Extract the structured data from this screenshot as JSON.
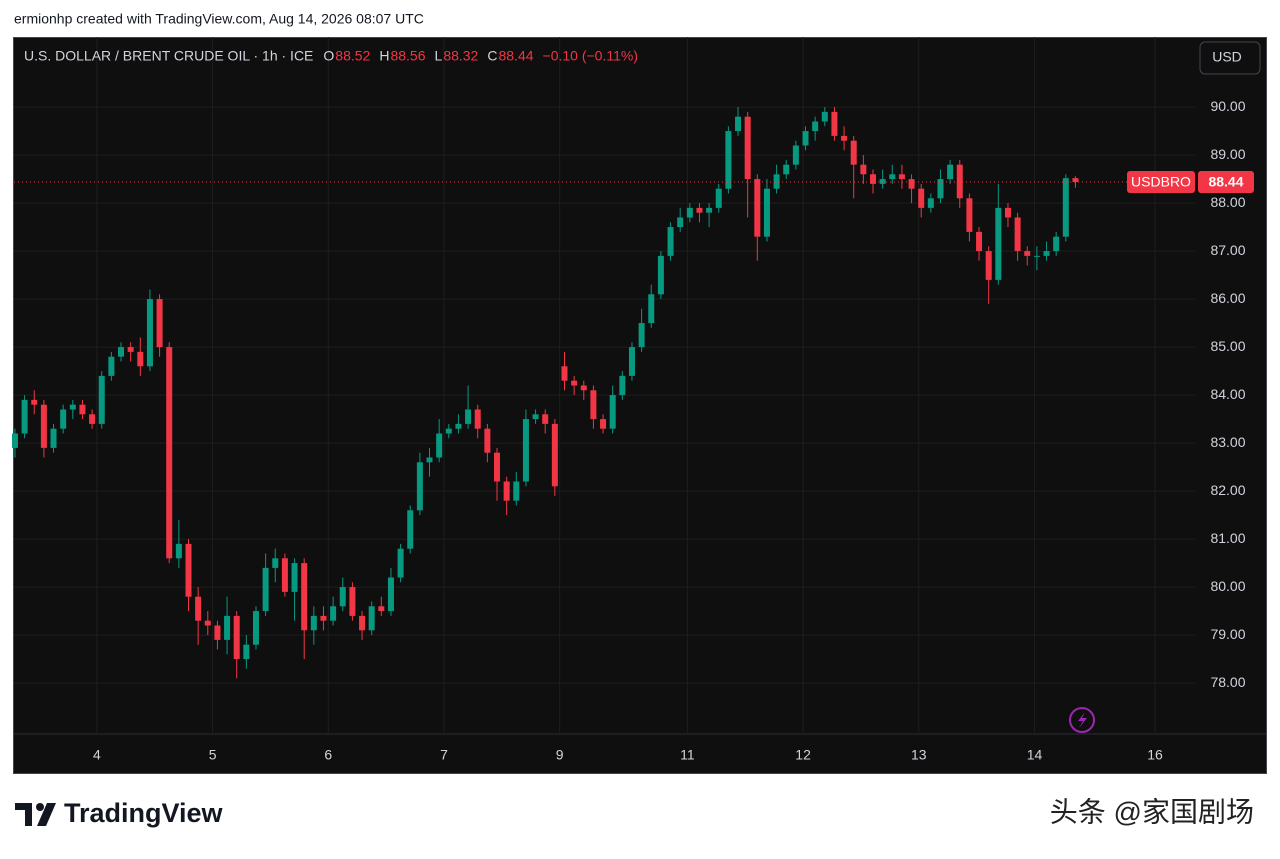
{
  "header": {
    "credit": "ermionhp created with TradingView.com, Aug 14, 2026 08:07 UTC"
  },
  "legend": {
    "symbol": "U.S. DOLLAR / BRENT CRUDE OIL · 1h · ICE",
    "items": [
      {
        "key": "O",
        "value": "88.52"
      },
      {
        "key": "H",
        "value": "88.56"
      },
      {
        "key": "L",
        "value": "88.32"
      },
      {
        "key": "C",
        "value": "88.44"
      }
    ],
    "change": "−0.10 (−0.11%)"
  },
  "currency": "USD",
  "brand": "TradingView",
  "watermark": "头条 @家国剧场",
  "chart_data": {
    "type": "candlestick",
    "up_color": "#089981",
    "down_color": "#f23645",
    "grid": true,
    "last_price": {
      "name": "USDBRO",
      "value": 88.44,
      "label": "88.44",
      "color": "#f23645"
    },
    "xlim": [
      -17.2,
      227.8
    ],
    "xticks": [
      {
        "value": 0,
        "label": "4"
      },
      {
        "value": 24,
        "label": "5"
      },
      {
        "value": 48,
        "label": "6"
      },
      {
        "value": 72,
        "label": "7"
      },
      {
        "value": 96,
        "label": "9"
      },
      {
        "value": 122.5,
        "label": "11"
      },
      {
        "value": 146.5,
        "label": "12"
      },
      {
        "value": 170.5,
        "label": "13"
      },
      {
        "value": 194.5,
        "label": "14"
      },
      {
        "value": 219.5,
        "label": "16"
      }
    ],
    "ylim": [
      76.96,
      91.46
    ],
    "yticks": [
      {
        "value": 78,
        "label": "78.00"
      },
      {
        "value": 79,
        "label": "79.00"
      },
      {
        "value": 80,
        "label": "80.00"
      },
      {
        "value": 81,
        "label": "81.00"
      },
      {
        "value": 82,
        "label": "82.00"
      },
      {
        "value": 83,
        "label": "83.00"
      },
      {
        "value": 84,
        "label": "84.00"
      },
      {
        "value": 85,
        "label": "85.00"
      },
      {
        "value": 86,
        "label": "86.00"
      },
      {
        "value": 87,
        "label": "87.00"
      },
      {
        "value": 88,
        "label": "88.00"
      },
      {
        "value": 89,
        "label": "89.00"
      },
      {
        "value": 90,
        "label": "90.00"
      }
    ],
    "x": [
      -17,
      -15,
      -13,
      -11,
      -9,
      -7,
      -5,
      -3,
      -1,
      1,
      3,
      5,
      7,
      9,
      11,
      13,
      15,
      17,
      19,
      21,
      23,
      25,
      27,
      29,
      31,
      33,
      35,
      37,
      39,
      41,
      43,
      45,
      47,
      49,
      51,
      53,
      55,
      57,
      59,
      61,
      63,
      65,
      67,
      69,
      71,
      73,
      75,
      77,
      79,
      81,
      83,
      85,
      87,
      89,
      91,
      93,
      95,
      97,
      99,
      101,
      103,
      105,
      107,
      109,
      111,
      113,
      115,
      117,
      119,
      121,
      123,
      125,
      127,
      129,
      131,
      133,
      135,
      137,
      139,
      141,
      143,
      145,
      147,
      149,
      151,
      153,
      155,
      157,
      159,
      161,
      163,
      165,
      167,
      169,
      171,
      173,
      175,
      177,
      179,
      181,
      183,
      185,
      187,
      189,
      191,
      193,
      195,
      197,
      199,
      201,
      203
    ],
    "open": [
      82.9,
      83.2,
      83.9,
      83.8,
      82.9,
      83.3,
      83.7,
      83.8,
      83.6,
      83.4,
      84.4,
      84.8,
      85.0,
      84.9,
      84.6,
      86.0,
      85.0,
      80.6,
      80.9,
      79.8,
      79.3,
      79.2,
      78.9,
      79.4,
      78.5,
      78.8,
      79.5,
      80.4,
      80.6,
      79.9,
      80.5,
      79.1,
      79.4,
      79.3,
      79.6,
      80.0,
      79.4,
      79.1,
      79.6,
      79.5,
      80.2,
      80.8,
      81.6,
      82.6,
      82.7,
      83.2,
      83.3,
      83.4,
      83.7,
      83.3,
      82.8,
      82.2,
      81.8,
      82.2,
      83.5,
      83.6,
      83.4,
      84.6,
      84.3,
      84.2,
      84.1,
      83.5,
      83.3,
      84.0,
      84.4,
      85.0,
      85.5,
      86.1,
      86.9,
      87.5,
      87.7,
      87.9,
      87.8,
      87.9,
      88.3,
      89.5,
      89.8,
      88.5,
      87.3,
      88.3,
      88.6,
      88.8,
      89.2,
      89.5,
      89.7,
      89.9,
      89.4,
      89.3,
      88.8,
      88.6,
      88.4,
      88.5,
      88.6,
      88.5,
      88.3,
      87.9,
      88.1,
      88.5,
      88.8,
      88.1,
      87.4,
      87.0,
      86.4,
      87.9,
      87.7,
      87.0,
      86.9,
      86.9,
      87.0,
      87.3,
      88.52
    ],
    "high": [
      83.3,
      84.0,
      84.1,
      83.9,
      83.4,
      83.8,
      83.9,
      83.9,
      83.7,
      84.5,
      84.9,
      85.1,
      85.1,
      85.2,
      86.2,
      86.1,
      85.1,
      81.4,
      81.0,
      80.0,
      79.5,
      79.3,
      79.8,
      79.5,
      79.0,
      79.6,
      80.7,
      80.8,
      80.7,
      80.6,
      80.6,
      79.6,
      79.6,
      79.8,
      80.2,
      80.1,
      79.5,
      79.7,
      79.8,
      80.4,
      80.9,
      81.7,
      82.8,
      82.9,
      83.5,
      83.4,
      83.6,
      84.2,
      83.8,
      83.4,
      82.9,
      82.3,
      82.4,
      83.7,
      83.7,
      83.7,
      83.5,
      84.9,
      84.4,
      84.3,
      84.2,
      83.6,
      84.2,
      84.5,
      85.1,
      85.8,
      86.3,
      87.0,
      87.6,
      87.9,
      88.0,
      88.0,
      88.0,
      88.4,
      89.6,
      90.0,
      89.9,
      88.6,
      88.5,
      88.8,
      88.9,
      89.3,
      89.6,
      89.8,
      90.0,
      90.0,
      89.6,
      89.4,
      89.0,
      88.7,
      88.7,
      88.8,
      88.8,
      88.6,
      88.4,
      88.2,
      88.7,
      88.9,
      88.9,
      88.2,
      87.5,
      87.1,
      88.4,
      88.0,
      87.8,
      87.1,
      87.1,
      87.2,
      87.4,
      88.6,
      88.56
    ],
    "low": [
      82.7,
      83.1,
      83.6,
      82.7,
      82.8,
      83.2,
      83.5,
      83.5,
      83.3,
      83.3,
      84.3,
      84.7,
      84.7,
      84.4,
      84.5,
      84.8,
      80.5,
      80.4,
      79.5,
      78.8,
      79.0,
      78.7,
      78.6,
      78.1,
      78.3,
      78.7,
      79.4,
      80.1,
      79.8,
      79.3,
      78.5,
      78.8,
      79.1,
      79.2,
      79.5,
      79.3,
      78.9,
      79.0,
      79.4,
      79.4,
      80.1,
      80.7,
      81.5,
      82.3,
      82.6,
      83.1,
      83.2,
      83.3,
      83.1,
      82.6,
      81.8,
      81.5,
      81.7,
      82.1,
      83.4,
      83.2,
      81.9,
      84.1,
      84.0,
      83.9,
      83.3,
      83.2,
      83.2,
      83.9,
      84.3,
      84.9,
      85.4,
      86.0,
      86.8,
      87.4,
      87.6,
      87.6,
      87.5,
      87.8,
      88.2,
      89.4,
      87.7,
      86.8,
      87.2,
      88.2,
      88.5,
      88.7,
      89.1,
      89.3,
      89.6,
      89.3,
      89.1,
      88.1,
      88.4,
      88.2,
      88.3,
      88.4,
      88.3,
      88.0,
      87.7,
      87.8,
      88.0,
      88.4,
      87.9,
      87.2,
      86.8,
      85.9,
      86.3,
      87.5,
      86.8,
      86.7,
      86.6,
      86.8,
      86.9,
      87.2,
      88.32
    ],
    "close": [
      83.2,
      83.9,
      83.8,
      82.9,
      83.3,
      83.7,
      83.8,
      83.6,
      83.4,
      84.4,
      84.8,
      85.0,
      84.9,
      84.6,
      86.0,
      85.0,
      80.6,
      80.9,
      79.8,
      79.3,
      79.2,
      78.9,
      79.4,
      78.5,
      78.8,
      79.5,
      80.4,
      80.6,
      79.9,
      80.5,
      79.1,
      79.4,
      79.3,
      79.6,
      80.0,
      79.4,
      79.1,
      79.6,
      79.5,
      80.2,
      80.8,
      81.6,
      82.6,
      82.7,
      83.2,
      83.3,
      83.4,
      83.7,
      83.3,
      82.8,
      82.2,
      81.8,
      82.2,
      83.5,
      83.6,
      83.4,
      82.1,
      84.3,
      84.2,
      84.1,
      83.5,
      83.3,
      84.0,
      84.4,
      85.0,
      85.5,
      86.1,
      86.9,
      87.5,
      87.7,
      87.9,
      87.8,
      87.9,
      88.3,
      89.5,
      89.8,
      88.5,
      87.3,
      88.3,
      88.6,
      88.8,
      89.2,
      89.5,
      89.7,
      89.9,
      89.4,
      89.3,
      88.8,
      88.6,
      88.4,
      88.5,
      88.6,
      88.5,
      88.3,
      87.9,
      88.1,
      88.5,
      88.8,
      88.1,
      87.4,
      87.0,
      86.4,
      87.9,
      87.7,
      87.0,
      86.9,
      86.9,
      87.0,
      87.3,
      88.52,
      88.44
    ]
  }
}
